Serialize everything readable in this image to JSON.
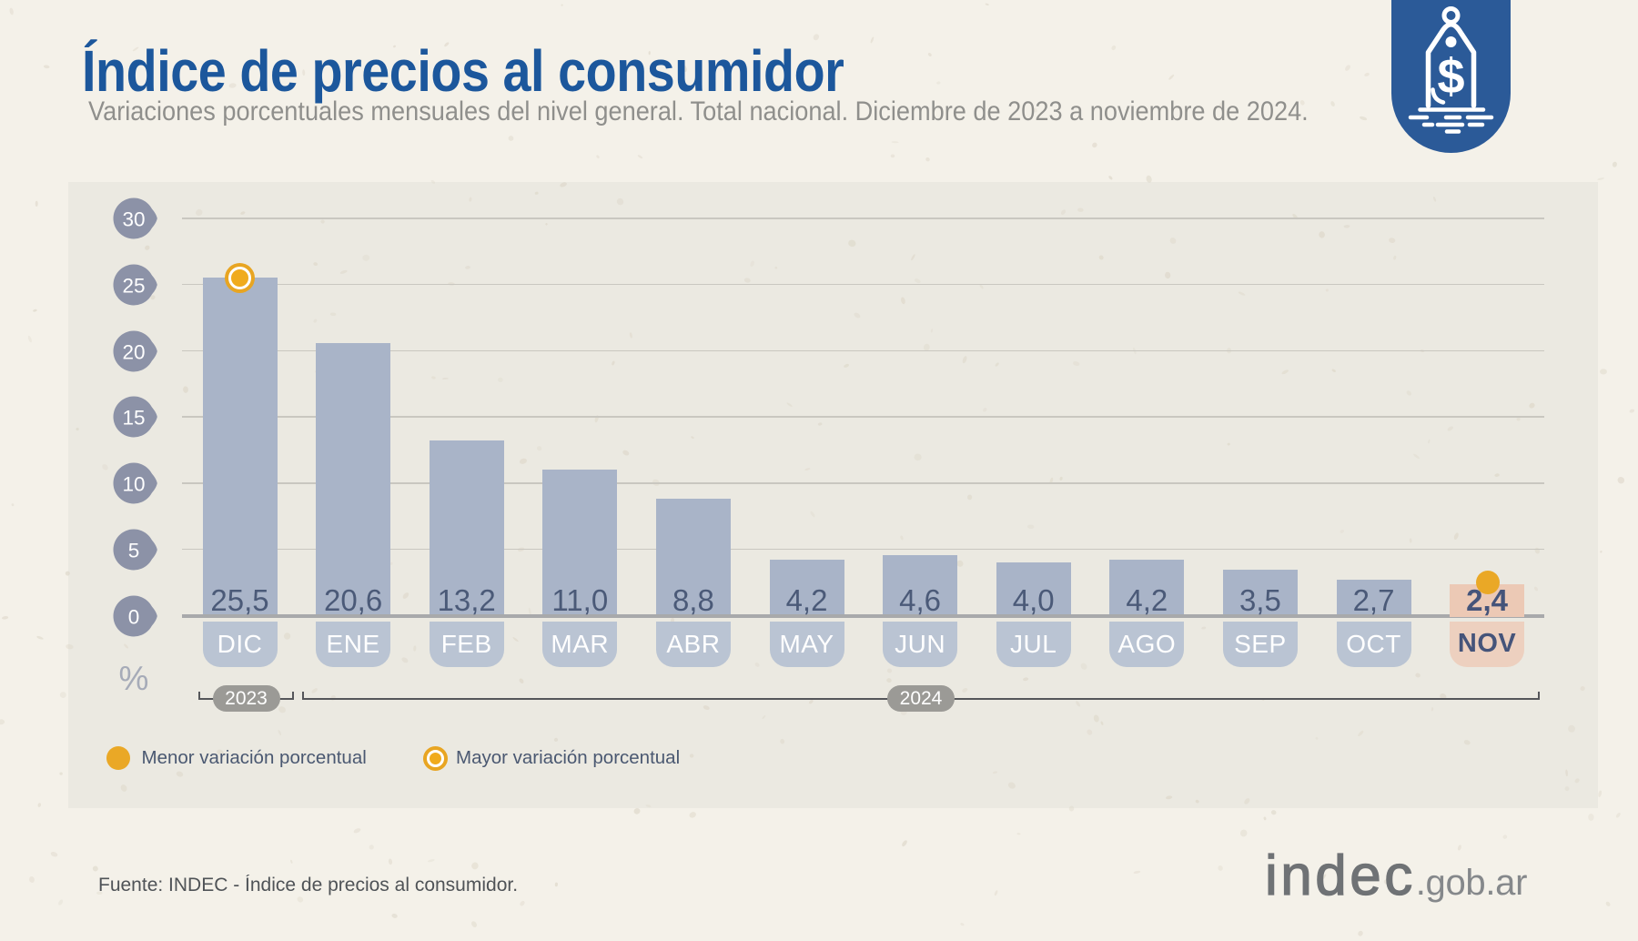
{
  "header": {
    "title": "Índice de precios al consumidor",
    "subtitle": "Variaciones porcentuales mensuales del nivel general. Total nacional. Diciembre de 2023 a noviembre de 2024."
  },
  "icon": {
    "name": "price-tag-icon",
    "background": "#2b5a98",
    "stroke": "#ffffff"
  },
  "chart_data": {
    "type": "bar",
    "title": "Índice de precios al consumidor",
    "subtitle": "Variaciones porcentuales mensuales del nivel general. Total nacional. Diciembre de 2023 a noviembre de 2024.",
    "categories": [
      "DIC",
      "ENE",
      "FEB",
      "MAR",
      "ABR",
      "MAY",
      "JUN",
      "JUL",
      "AGO",
      "SEP",
      "OCT",
      "NOV"
    ],
    "values": [
      25.5,
      20.6,
      13.2,
      11.0,
      8.8,
      4.2,
      4.6,
      4.0,
      4.2,
      3.5,
      2.7,
      2.4
    ],
    "value_labels": [
      "25,5",
      "20,6",
      "13,2",
      "11,0",
      "8,8",
      "4,2",
      "4,6",
      "4,0",
      "4,2",
      "3,5",
      "2,7",
      "2,4"
    ],
    "ylabel": "%",
    "yticks": [
      30,
      25,
      20,
      15,
      10,
      5,
      0
    ],
    "ylim": [
      0,
      30
    ],
    "grid": true,
    "legend_position": "bottom-left",
    "highlighted_category": "NOV",
    "markers": [
      {
        "type": "max",
        "category": "DIC",
        "value": 25.5,
        "style": "ringed-dot"
      },
      {
        "type": "min",
        "category": "NOV",
        "value": 2.4,
        "style": "filled-dot"
      }
    ],
    "year_groups": [
      {
        "label": "2023",
        "from": "DIC",
        "to": "DIC"
      },
      {
        "label": "2024",
        "from": "ENE",
        "to": "NOV"
      }
    ],
    "colors": {
      "bar": "#a9b4c8",
      "bar_base": "#bac4d3",
      "bar_highlight": "#ecc9b5",
      "bar_base_highlight": "#edd0bf",
      "marker": "#eaa826",
      "value_text": "#4b5a78",
      "axis_badge": "#8c92a7",
      "panel": "#ebe9e1",
      "background": "#f4f1e9",
      "title_blue": "#1c579c"
    }
  },
  "legend": {
    "items": [
      {
        "marker": "filled-dot",
        "label": "Menor variación porcentual"
      },
      {
        "marker": "ringed-dot",
        "label": "Mayor variación porcentual"
      }
    ]
  },
  "footer": {
    "source": "Fuente: INDEC - Índice de precios al consumidor.",
    "logo_main": "indec",
    "logo_suffix": ".gob.ar"
  }
}
